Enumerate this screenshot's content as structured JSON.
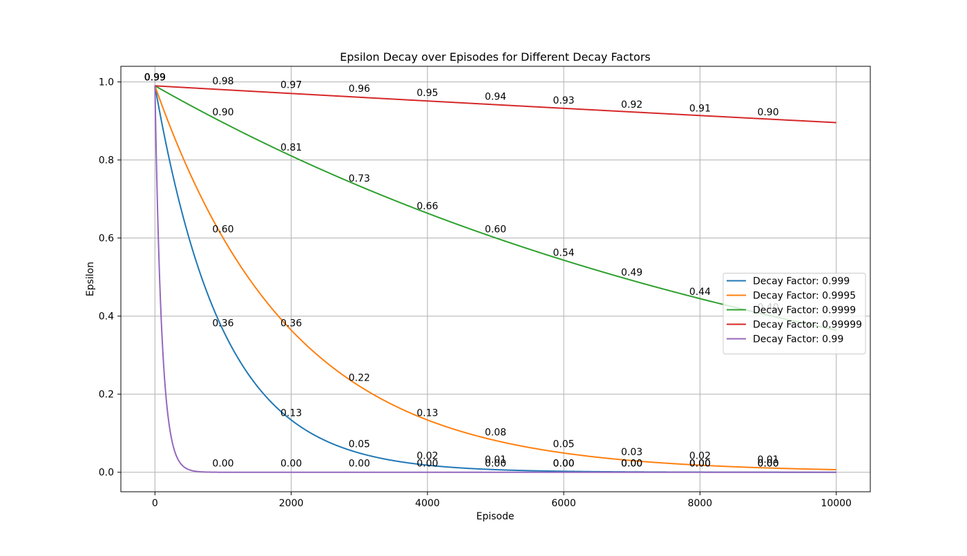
{
  "chart_data": {
    "type": "line",
    "title": "Epsilon Decay over Episodes for Different Decay Factors",
    "xlabel": "Episode",
    "ylabel": "Epsilon",
    "xlim": [
      -500,
      10500
    ],
    "ylim": [
      -0.05,
      1.04
    ],
    "xticks": [
      0,
      2000,
      4000,
      6000,
      8000,
      10000
    ],
    "xtick_labels": [
      "0",
      "2000",
      "4000",
      "6000",
      "8000",
      "10000"
    ],
    "yticks": [
      0.0,
      0.2,
      0.4,
      0.6,
      0.8,
      1.0
    ],
    "ytick_labels": [
      "0.0",
      "0.2",
      "0.4",
      "0.6",
      "0.8",
      "1.0"
    ],
    "grid": true,
    "legend_position": "center-right",
    "initial_epsilon": 0.99,
    "episode_range": [
      0,
      10000
    ],
    "series": [
      {
        "name": "Decay Factor: 0.999",
        "decay": 0.999,
        "color": "#1f77b4",
        "labels": [
          {
            "x": 0,
            "y": 0.99,
            "text": "0.99"
          },
          {
            "x": 1000,
            "y": 0.36,
            "text": "0.36"
          },
          {
            "x": 2000,
            "y": 0.13,
            "text": "0.13"
          },
          {
            "x": 3000,
            "y": 0.05,
            "text": "0.05"
          },
          {
            "x": 4000,
            "y": 0.02,
            "text": "0.02"
          },
          {
            "x": 5000,
            "y": 0.01,
            "text": "0.01"
          },
          {
            "x": 6000,
            "y": 0.0,
            "text": "0.00"
          },
          {
            "x": 7000,
            "y": 0.0,
            "text": "0.00"
          },
          {
            "x": 8000,
            "y": 0.0,
            "text": "0.00"
          },
          {
            "x": 9000,
            "y": 0.0,
            "text": "0.00"
          }
        ]
      },
      {
        "name": "Decay Factor: 0.9995",
        "decay": 0.9995,
        "color": "#ff7f0e",
        "labels": [
          {
            "x": 0,
            "y": 0.99,
            "text": "0.99"
          },
          {
            "x": 1000,
            "y": 0.6,
            "text": "0.60"
          },
          {
            "x": 2000,
            "y": 0.36,
            "text": "0.36"
          },
          {
            "x": 3000,
            "y": 0.22,
            "text": "0.22"
          },
          {
            "x": 4000,
            "y": 0.13,
            "text": "0.13"
          },
          {
            "x": 5000,
            "y": 0.08,
            "text": "0.08"
          },
          {
            "x": 6000,
            "y": 0.05,
            "text": "0.05"
          },
          {
            "x": 7000,
            "y": 0.03,
            "text": "0.03"
          },
          {
            "x": 8000,
            "y": 0.02,
            "text": "0.02"
          },
          {
            "x": 9000,
            "y": 0.01,
            "text": "0.01"
          }
        ]
      },
      {
        "name": "Decay Factor: 0.9999",
        "decay": 0.9999,
        "color": "#2ca02c",
        "labels": [
          {
            "x": 0,
            "y": 0.99,
            "text": "0.99"
          },
          {
            "x": 1000,
            "y": 0.9,
            "text": "0.90"
          },
          {
            "x": 2000,
            "y": 0.81,
            "text": "0.81"
          },
          {
            "x": 3000,
            "y": 0.73,
            "text": "0.73"
          },
          {
            "x": 4000,
            "y": 0.66,
            "text": "0.66"
          },
          {
            "x": 5000,
            "y": 0.6,
            "text": "0.60"
          },
          {
            "x": 6000,
            "y": 0.54,
            "text": "0.54"
          },
          {
            "x": 7000,
            "y": 0.49,
            "text": "0.49"
          },
          {
            "x": 8000,
            "y": 0.44,
            "text": "0.44"
          },
          {
            "x": 9000,
            "y": 0.4,
            "text": "0.40"
          }
        ]
      },
      {
        "name": "Decay Factor: 0.99999",
        "decay": 0.99999,
        "color": "#d62728",
        "labels": [
          {
            "x": 0,
            "y": 0.99,
            "text": "0.99"
          },
          {
            "x": 1000,
            "y": 0.98,
            "text": "0.98"
          },
          {
            "x": 2000,
            "y": 0.97,
            "text": "0.97"
          },
          {
            "x": 3000,
            "y": 0.96,
            "text": "0.96"
          },
          {
            "x": 4000,
            "y": 0.95,
            "text": "0.95"
          },
          {
            "x": 5000,
            "y": 0.94,
            "text": "0.94"
          },
          {
            "x": 6000,
            "y": 0.93,
            "text": "0.93"
          },
          {
            "x": 7000,
            "y": 0.92,
            "text": "0.92"
          },
          {
            "x": 8000,
            "y": 0.91,
            "text": "0.91"
          },
          {
            "x": 9000,
            "y": 0.9,
            "text": "0.90"
          }
        ]
      },
      {
        "name": "Decay Factor: 0.99",
        "decay": 0.99,
        "color": "#9467bd",
        "labels": [
          {
            "x": 0,
            "y": 0.99,
            "text": "0.99"
          },
          {
            "x": 1000,
            "y": 0.0,
            "text": "0.00"
          },
          {
            "x": 2000,
            "y": 0.0,
            "text": "0.00"
          },
          {
            "x": 3000,
            "y": 0.0,
            "text": "0.00"
          },
          {
            "x": 4000,
            "y": 0.0,
            "text": "0.00"
          },
          {
            "x": 5000,
            "y": 0.0,
            "text": "0.00"
          },
          {
            "x": 6000,
            "y": 0.0,
            "text": "0.00"
          },
          {
            "x": 7000,
            "y": 0.0,
            "text": "0.00"
          },
          {
            "x": 8000,
            "y": 0.0,
            "text": "0.00"
          },
          {
            "x": 9000,
            "y": 0.0,
            "text": "0.00"
          }
        ]
      }
    ]
  }
}
